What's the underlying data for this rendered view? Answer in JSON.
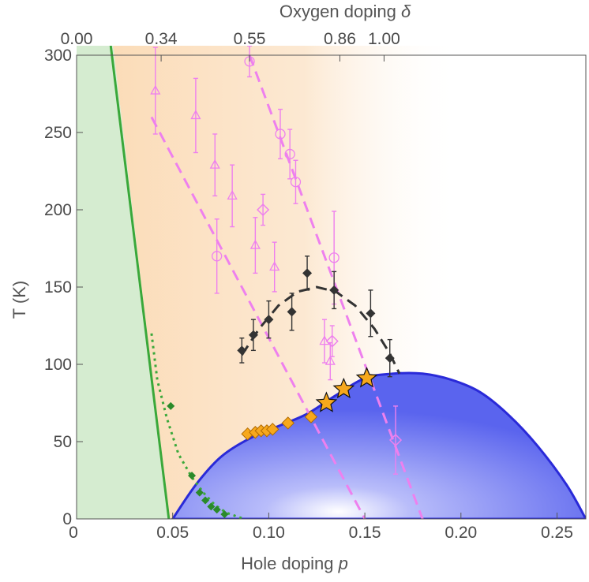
{
  "chart_data": {
    "type": "scatter",
    "title": "",
    "xlabel": "Hole doping p",
    "xlabel_main": "Hole doping ",
    "xlabel_var": "p",
    "ylabel": "T (K)",
    "top_label": "Oxygen doping δ",
    "top_label_main": "Oxygen doping ",
    "top_label_var": "δ",
    "xlim": [
      0,
      0.265
    ],
    "ylim": [
      0,
      300
    ],
    "x_ticks": [
      "0",
      "0.05",
      "0.10",
      "0.15",
      "0.20",
      "0.25"
    ],
    "x_tick_values": [
      0,
      0.05,
      0.1,
      0.15,
      0.2,
      0.25
    ],
    "y_ticks": [
      "0",
      "50",
      "100",
      "150",
      "200",
      "250",
      "300"
    ],
    "y_tick_values": [
      0,
      50,
      100,
      150,
      200,
      250,
      300
    ],
    "top_ticks": [
      {
        "p": 0.0,
        "label": "0.00"
      },
      {
        "p": 0.044,
        "label": "0.34"
      },
      {
        "p": 0.09,
        "label": "0.55"
      },
      {
        "p": 0.137,
        "label": "0.86"
      },
      {
        "p": 0.16,
        "label": "1.00"
      }
    ],
    "colors": {
      "afm_region": "#d5ecd0",
      "afm_line": "#3aa83a",
      "pseudogap": "#fbdcb8",
      "sc_dome": "#5a64ee",
      "sc_edge": "#2a2ad8",
      "magenta": "#ee80ee",
      "black_marker": "#333333",
      "gold": "#f7a81c",
      "green_marker": "#2a8a2a"
    },
    "afm_line": [
      {
        "x": 0.019,
        "y": 300
      },
      {
        "x": 0.048,
        "y": 0
      }
    ],
    "sc_dome": [
      {
        "x": 0.05,
        "y": 0
      },
      {
        "x": 0.062,
        "y": 22
      },
      {
        "x": 0.075,
        "y": 40
      },
      {
        "x": 0.09,
        "y": 52
      },
      {
        "x": 0.105,
        "y": 60
      },
      {
        "x": 0.12,
        "y": 68
      },
      {
        "x": 0.135,
        "y": 80
      },
      {
        "x": 0.15,
        "y": 91
      },
      {
        "x": 0.165,
        "y": 94
      },
      {
        "x": 0.18,
        "y": 94
      },
      {
        "x": 0.195,
        "y": 90
      },
      {
        "x": 0.21,
        "y": 82
      },
      {
        "x": 0.225,
        "y": 67
      },
      {
        "x": 0.24,
        "y": 47
      },
      {
        "x": 0.255,
        "y": 22
      },
      {
        "x": 0.265,
        "y": 0
      }
    ],
    "green_dotted": [
      {
        "x": 0.039,
        "y": 120
      },
      {
        "x": 0.042,
        "y": 90
      },
      {
        "x": 0.047,
        "y": 65
      },
      {
        "x": 0.053,
        "y": 42
      },
      {
        "x": 0.06,
        "y": 27
      },
      {
        "x": 0.066,
        "y": 17
      },
      {
        "x": 0.072,
        "y": 9
      },
      {
        "x": 0.078,
        "y": 4
      },
      {
        "x": 0.087,
        "y": 0
      }
    ],
    "green_markers": [
      {
        "x": 0.049,
        "y": 73
      },
      {
        "x": 0.06,
        "y": 28
      },
      {
        "x": 0.064,
        "y": 17
      },
      {
        "x": 0.067,
        "y": 12
      },
      {
        "x": 0.07,
        "y": 8
      },
      {
        "x": 0.073,
        "y": 6
      },
      {
        "x": 0.077,
        "y": 3
      }
    ],
    "magenta_dashed": [
      [
        {
          "x": 0.039,
          "y": 260
        },
        {
          "x": 0.15,
          "y": 0
        }
      ],
      [
        {
          "x": 0.09,
          "y": 300
        },
        {
          "x": 0.18,
          "y": 0
        }
      ]
    ],
    "black_dashed": [
      {
        "x": 0.086,
        "y": 106
      },
      {
        "x": 0.095,
        "y": 123
      },
      {
        "x": 0.105,
        "y": 138
      },
      {
        "x": 0.115,
        "y": 147
      },
      {
        "x": 0.125,
        "y": 150
      },
      {
        "x": 0.135,
        "y": 147
      },
      {
        "x": 0.145,
        "y": 138
      },
      {
        "x": 0.155,
        "y": 123
      },
      {
        "x": 0.163,
        "y": 107
      },
      {
        "x": 0.168,
        "y": 94
      }
    ],
    "series": [
      {
        "marker": "triangle",
        "points": [
          {
            "x": 0.041,
            "y": 277,
            "err": 28
          },
          {
            "x": 0.062,
            "y": 261,
            "err": 24
          },
          {
            "x": 0.072,
            "y": 229,
            "err": 20
          },
          {
            "x": 0.081,
            "y": 209,
            "err": 20
          },
          {
            "x": 0.093,
            "y": 177,
            "err": 18
          },
          {
            "x": 0.103,
            "y": 163,
            "err": 16
          },
          {
            "x": 0.129,
            "y": 115,
            "err": 14
          },
          {
            "x": 0.132,
            "y": 102,
            "err": 12
          }
        ]
      },
      {
        "marker": "circle",
        "points": [
          {
            "x": 0.073,
            "y": 170,
            "err": 24
          },
          {
            "x": 0.09,
            "y": 296,
            "err": 10
          },
          {
            "x": 0.106,
            "y": 249,
            "err": 16
          },
          {
            "x": 0.111,
            "y": 236,
            "err": 16
          },
          {
            "x": 0.114,
            "y": 218,
            "err": 14
          },
          {
            "x": 0.134,
            "y": 169,
            "err": 30
          }
        ]
      },
      {
        "marker": "diamond-open",
        "points": [
          {
            "x": 0.097,
            "y": 200,
            "err": 10
          },
          {
            "x": 0.133,
            "y": 115,
            "err": 10
          },
          {
            "x": 0.166,
            "y": 51,
            "err": 22
          }
        ]
      },
      {
        "marker": "diamond-filled",
        "points": [
          {
            "x": 0.086,
            "y": 109,
            "err": 8
          },
          {
            "x": 0.092,
            "y": 119,
            "err": 10
          },
          {
            "x": 0.1,
            "y": 129,
            "err": 12
          },
          {
            "x": 0.112,
            "y": 134,
            "err": 12
          },
          {
            "x": 0.12,
            "y": 159,
            "err": 11
          },
          {
            "x": 0.134,
            "y": 148,
            "err": 12
          },
          {
            "x": 0.153,
            "y": 133,
            "err": 15
          },
          {
            "x": 0.163,
            "y": 104,
            "err": 12
          }
        ]
      },
      {
        "marker": "diamond-gold",
        "points": [
          {
            "x": 0.089,
            "y": 55
          },
          {
            "x": 0.093,
            "y": 56
          },
          {
            "x": 0.096,
            "y": 57
          },
          {
            "x": 0.099,
            "y": 57
          },
          {
            "x": 0.102,
            "y": 58
          },
          {
            "x": 0.11,
            "y": 62
          },
          {
            "x": 0.122,
            "y": 66
          }
        ]
      },
      {
        "marker": "star",
        "points": [
          {
            "x": 0.13,
            "y": 75
          },
          {
            "x": 0.139,
            "y": 84
          },
          {
            "x": 0.151,
            "y": 91
          }
        ]
      }
    ]
  }
}
